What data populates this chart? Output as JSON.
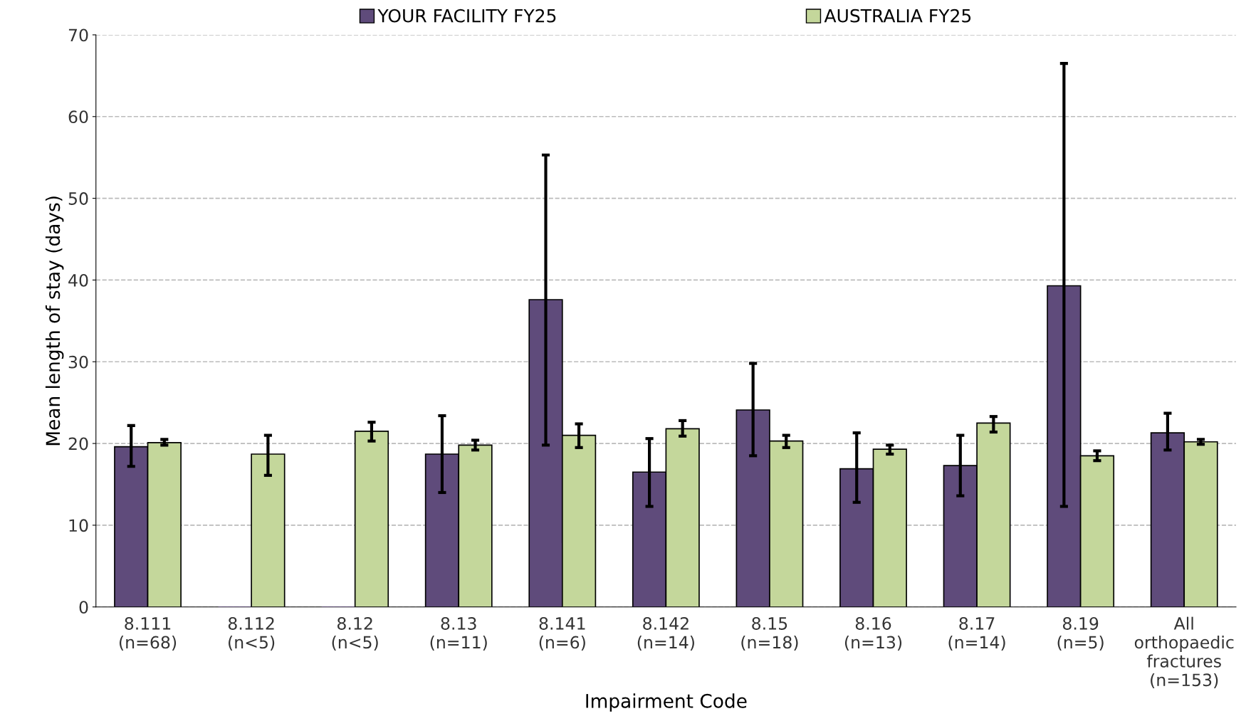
{
  "chart_data": {
    "type": "bar",
    "xlabel": "Impairment Code",
    "ylabel": "Mean length of stay (days)",
    "categories": [
      "8.111\n(n=68)",
      "8.112\n(n<5)",
      "8.12\n(n<5)",
      "8.13\n(n=11)",
      "8.141\n(n=6)",
      "8.142\n(n=14)",
      "8.15\n(n=18)",
      "8.16\n(n=13)",
      "8.17\n(n=14)",
      "8.19\n(n=5)",
      "All\northopaedic\nfractures\n(n=153)"
    ],
    "series": [
      {
        "name": "YOUR FACILITY FY25",
        "color": "#5f4b7b",
        "values": [
          19.6,
          0,
          0,
          18.7,
          37.6,
          16.5,
          24.1,
          16.9,
          17.3,
          39.3,
          21.3
        ],
        "errors": [
          [
            17.2,
            22.2
          ],
          null,
          null,
          [
            14.0,
            23.4
          ],
          [
            19.8,
            55.3
          ],
          [
            12.3,
            20.6
          ],
          [
            18.5,
            29.8
          ],
          [
            12.8,
            21.3
          ],
          [
            13.6,
            21.0
          ],
          [
            12.3,
            66.5
          ],
          [
            19.2,
            23.7
          ]
        ]
      },
      {
        "name": "AUSTRALIA FY25",
        "color": "#c4d79b",
        "values": [
          20.1,
          18.7,
          21.5,
          19.8,
          21.0,
          21.8,
          20.3,
          19.3,
          22.5,
          18.5,
          20.2
        ],
        "errors": [
          [
            19.8,
            20.5
          ],
          [
            16.1,
            21.0
          ],
          [
            20.3,
            22.6
          ],
          [
            19.2,
            20.4
          ],
          [
            19.5,
            22.4
          ],
          [
            20.9,
            22.8
          ],
          [
            19.5,
            21.0
          ],
          [
            18.7,
            19.8
          ],
          [
            21.4,
            23.3
          ],
          [
            17.9,
            19.1
          ],
          [
            19.9,
            20.5
          ]
        ]
      }
    ],
    "ylim": [
      0,
      70
    ],
    "yticks": [
      0,
      10,
      20,
      30,
      40,
      50,
      60,
      70
    ],
    "grid": "y",
    "legend": "top"
  }
}
